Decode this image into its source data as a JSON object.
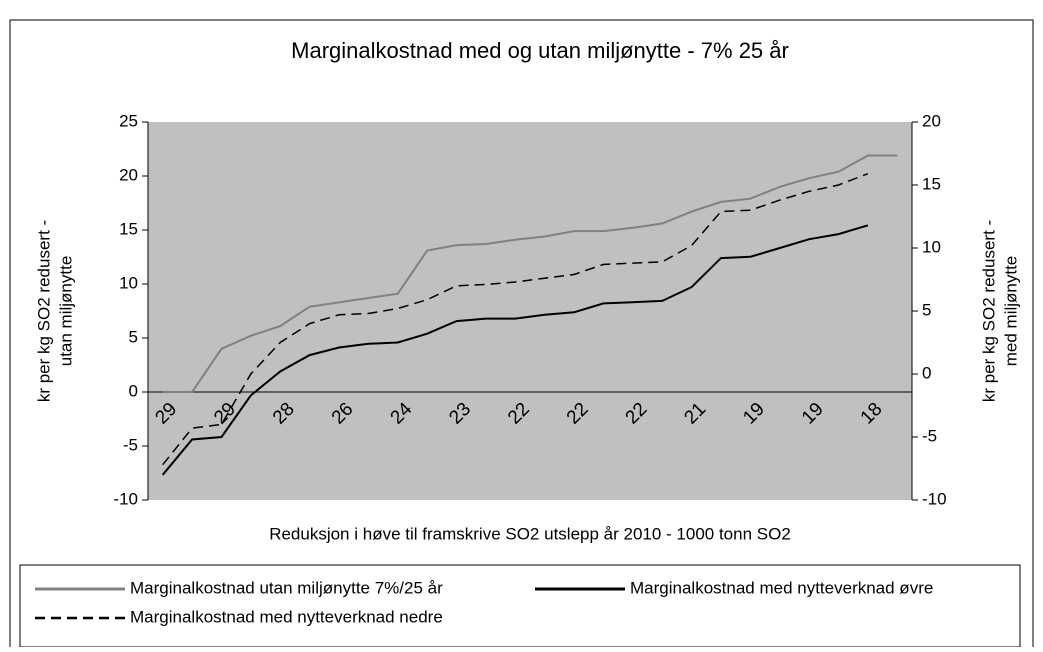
{
  "chart_data": {
    "type": "line",
    "title": "Marginalkostnad med og utan miljønytte - 7% 25 år",
    "xlabel": "Reduksjon i høve til framskrive SO2 utslepp år 2010 - 1000 tonn SO2",
    "ylabel": [
      "kr per kg SO2 redusert -",
      "utan miljønytte"
    ],
    "y2label": [
      "kr per kg SO2 redusert -",
      "med miljønytte"
    ],
    "categories": [
      "29",
      null,
      "29",
      null,
      "28",
      null,
      "26",
      null,
      "24",
      null,
      "23",
      null,
      "22",
      null,
      "22",
      null,
      "22",
      null,
      "21",
      null,
      "19",
      null,
      "19",
      null,
      "18",
      null
    ],
    "ylim": [
      -10,
      25
    ],
    "yticks": [
      -10,
      -5,
      0,
      5,
      10,
      15,
      20,
      25
    ],
    "y2lim": [
      -10,
      20
    ],
    "y2ticks": [
      -10,
      -5,
      0,
      5,
      10,
      15,
      20
    ],
    "plot_background": "#c0c0c0",
    "series": [
      {
        "name": "Marginalkostnad utan miljønytte 7%/25 år",
        "color": "#808080",
        "dash": false,
        "width": 2,
        "values": [
          0,
          0,
          4,
          5.2,
          6.1,
          7.9,
          8.3,
          8.7,
          9.1,
          13.1,
          13.6,
          13.7,
          14.1,
          14.4,
          14.9,
          14.9,
          15.2,
          15.6,
          16.7,
          17.6,
          17.9,
          19,
          19.8,
          20.4,
          21.9,
          21.9
        ]
      },
      {
        "name": "Marginalkostnad med nytteverknad øvre",
        "color": "#000000",
        "dash": false,
        "width": 2,
        "axis": "y2",
        "values": [
          -8,
          -5.2,
          -5,
          -1.7,
          0.2,
          1.5,
          2.1,
          2.4,
          2.5,
          3.2,
          4.2,
          4.4,
          4.4,
          4.7,
          4.9,
          5.6,
          5.7,
          5.8,
          6.9,
          9.2,
          9.3,
          10,
          10.7,
          11.1,
          11.8,
          null
        ]
      },
      {
        "name": "Marginalkostnad med nytteverknad nedre",
        "color": "#000000",
        "dash": true,
        "width": 1.5,
        "axis": "y2",
        "values": [
          -7.2,
          -4.3,
          -4,
          0,
          2.5,
          4,
          4.7,
          4.8,
          5.2,
          5.9,
          7,
          7.1,
          7.3,
          7.6,
          7.9,
          8.7,
          8.8,
          8.9,
          10.2,
          12.9,
          13,
          13.8,
          14.5,
          15,
          15.9,
          null
        ]
      }
    ]
  }
}
